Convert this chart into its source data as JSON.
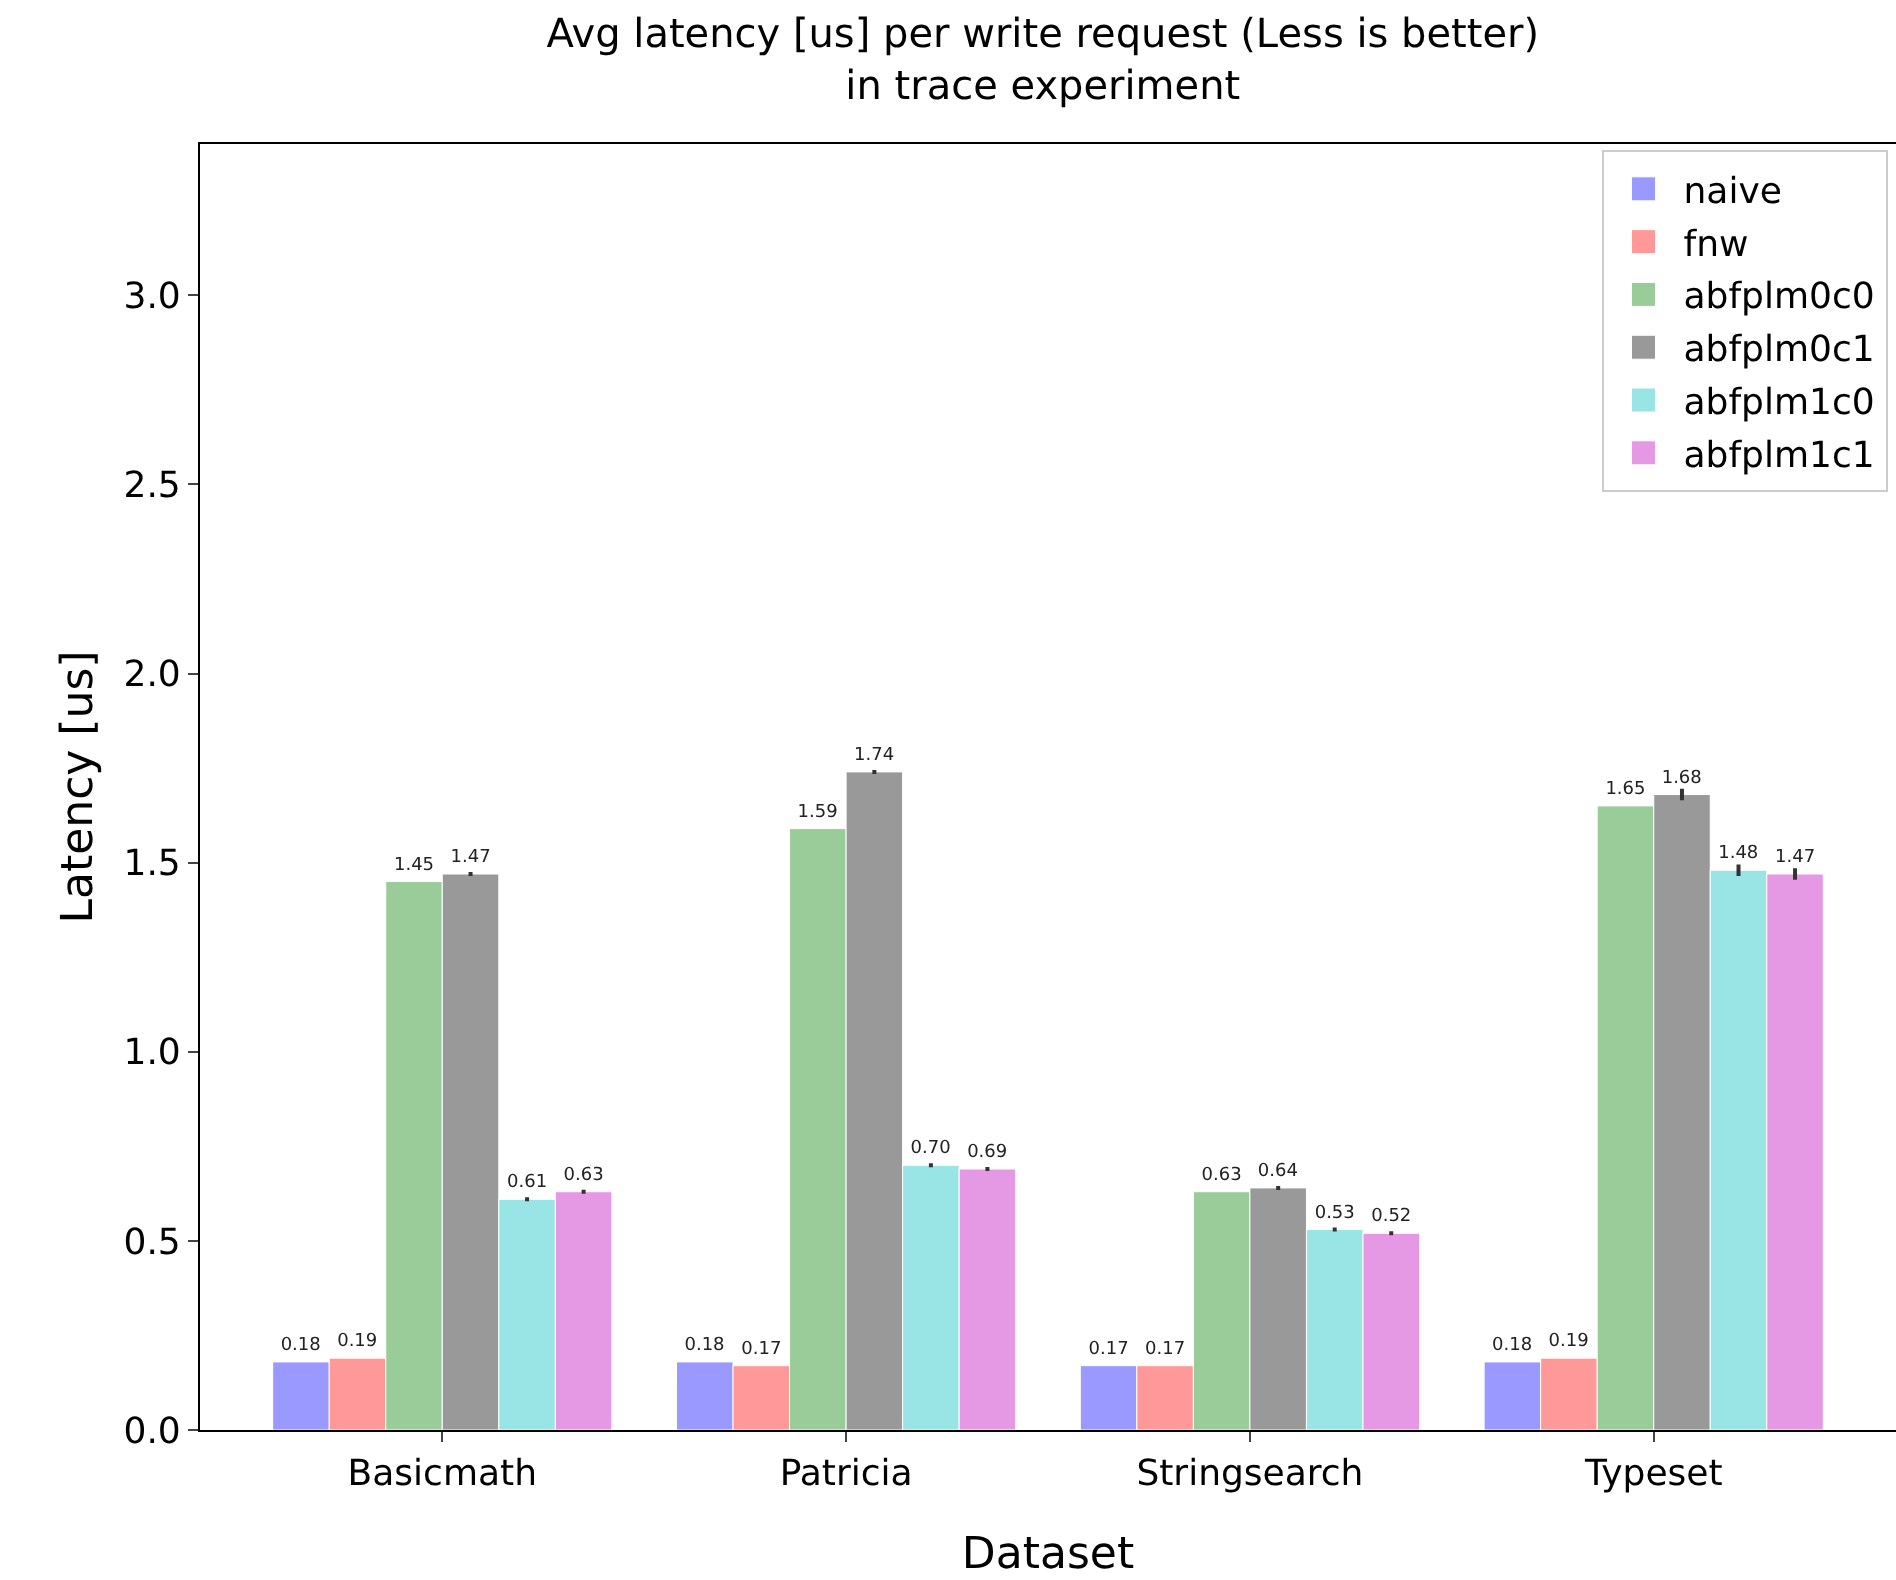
{
  "chart_data": {
    "type": "bar",
    "title": "Avg latency [us] per write request (Less is better)\nin trace experiment",
    "xlabel": "Dataset",
    "ylabel": "Latency [us]",
    "categories": [
      "Basicmath",
      "Patricia",
      "Stringsearch",
      "Typeset"
    ],
    "series": [
      {
        "name": "naive",
        "color": "#9999ff",
        "values": [
          0.18,
          0.18,
          0.17,
          0.18
        ],
        "value_labels": [
          "0.18",
          "0.18",
          "0.17",
          "0.18"
        ]
      },
      {
        "name": "fnw",
        "color": "#ff9999",
        "values": [
          0.19,
          0.17,
          0.17,
          0.19
        ],
        "value_labels": [
          "0.19",
          "0.17",
          "0.17",
          "0.19"
        ]
      },
      {
        "name": "abfplm0c0",
        "color": "#99cc99",
        "values": [
          1.45,
          1.59,
          0.63,
          1.65
        ],
        "value_labels": [
          "1.45",
          "1.59",
          "0.63",
          "1.65"
        ]
      },
      {
        "name": "abfplm0c1",
        "color": "#999999",
        "values": [
          1.47,
          1.74,
          0.64,
          1.68
        ],
        "errors": [
          null,
          null,
          null,
          0.01
        ],
        "value_labels": [
          "1.47",
          "1.74",
          "0.64",
          "1.68"
        ]
      },
      {
        "name": "abfplm1c0",
        "color": "#99e5e5",
        "values": [
          0.61,
          0.7,
          0.53,
          1.48
        ],
        "errors": [
          null,
          null,
          null,
          0.01
        ],
        "value_labels": [
          "0.61",
          "0.70",
          "0.53",
          "1.48"
        ]
      },
      {
        "name": "abfplm1c1",
        "color": "#e599e5",
        "values": [
          0.63,
          0.69,
          0.52,
          1.47
        ],
        "errors": [
          null,
          null,
          null,
          0.01
        ],
        "value_labels": [
          "0.63",
          "0.69",
          "0.52",
          "1.47"
        ]
      }
    ],
    "ylim": [
      0,
      3.4
    ],
    "yticks": [
      {
        "value": 0,
        "label": "0.0"
      },
      0.5,
      {
        "value": 1,
        "label": "1.0"
      },
      1.5,
      {
        "value": 2,
        "label": "2.0"
      },
      2.5,
      {
        "value": 3,
        "label": "3.0"
      }
    ],
    "grid": false,
    "legend": "top right"
  }
}
